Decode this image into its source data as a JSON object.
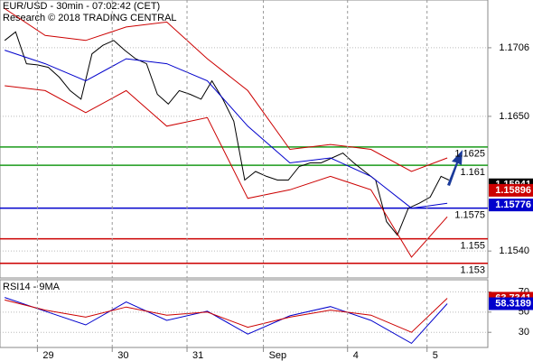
{
  "chart_data": [
    {
      "type": "line",
      "title": "EUR/USD - 30min - 07:02:42 (CET)",
      "subtitle": "Research © 2018 TRADING CENTRAL",
      "ylim": [
        1.1518,
        1.1745
      ],
      "xlim": [
        0,
        313
      ],
      "yticks": [
        1.1706,
        {
          "value": 1.165,
          "label": "1.1650"
        },
        {
          "value": 1.154,
          "label": "1.1540"
        }
      ],
      "grid": true,
      "series": [
        {
          "color": "#000000",
          "x": [
            3,
            10,
            17,
            24,
            31,
            38,
            45,
            52,
            59,
            66,
            73,
            80,
            87,
            94,
            101,
            108,
            115,
            122,
            129,
            136,
            143,
            150,
            157,
            164,
            171,
            178,
            185,
            192,
            199,
            206,
            213,
            220,
            227,
            234,
            241,
            248,
            255,
            262,
            269,
            276,
            283,
            288
          ],
          "values": [
            1.1712,
            1.1719,
            1.1693,
            1.1692,
            1.169,
            1.1682,
            1.1671,
            1.1664,
            1.1701,
            1.1708,
            1.1712,
            1.1704,
            1.1697,
            1.1693,
            1.1668,
            1.166,
            1.1671,
            1.1668,
            1.1664,
            1.1679,
            1.1664,
            1.1646,
            1.1598,
            1.1605,
            1.1601,
            1.1598,
            1.1598,
            1.1609,
            1.1612,
            1.1612,
            1.1616,
            1.162,
            1.1612,
            1.1605,
            1.1598,
            1.1564,
            1.1553,
            1.1575,
            1.1579,
            1.1584,
            1.1601,
            1.1598
          ]
        },
        {
          "color": "#cc0000",
          "x": [
            3,
            29,
            55,
            81,
            107,
            133,
            159,
            186,
            212,
            238,
            264,
            287
          ],
          "values": [
            1.1738,
            1.1716,
            1.1712,
            1.1723,
            1.1727,
            1.1697,
            1.1671,
            1.1623,
            1.1627,
            1.1623,
            1.1605,
            1.1616
          ]
        },
        {
          "color": "#cc0000",
          "x": [
            3,
            29,
            55,
            81,
            107,
            133,
            159,
            186,
            212,
            238,
            264,
            287
          ],
          "values": [
            1.1675,
            1.1671,
            1.1653,
            1.1671,
            1.1642,
            1.1649,
            1.1583,
            1.159,
            1.1601,
            1.159,
            1.1535,
            1.1568
          ]
        },
        {
          "color": "#0000cc",
          "x": [
            3,
            29,
            55,
            81,
            107,
            133,
            159,
            186,
            212,
            238,
            264,
            287
          ],
          "values": [
            1.1704,
            1.1693,
            1.1679,
            1.1697,
            1.1693,
            1.1679,
            1.1642,
            1.1612,
            1.1616,
            1.1601,
            1.1575,
            1.1579
          ]
        }
      ],
      "levels": [
        {
          "value": 1.1625,
          "color": "#1a9a1a"
        },
        {
          "value": 1.161,
          "color": "#1a9a1a"
        },
        {
          "value": 1.1575,
          "color": "#0000cc"
        },
        {
          "value": 1.155,
          "color": "#cc0000"
        },
        {
          "value": 1.153,
          "color": "#cc0000"
        }
      ],
      "price_tags": [
        {
          "value": 1.15941,
          "color": "#000000"
        },
        {
          "value": 1.15896,
          "color": "#cc0000"
        },
        {
          "value": 1.15776,
          "color": "#0000cc"
        }
      ]
    },
    {
      "type": "line",
      "title": "RSI14 - 9MA",
      "ylim": [
        15,
        82
      ],
      "xlim": [
        0,
        313
      ],
      "yticks": [
        70,
        50,
        30
      ],
      "xticks": [
        {
          "value": 24,
          "label": "29"
        },
        {
          "value": 72,
          "label": "30"
        },
        {
          "value": 120,
          "label": "31"
        },
        {
          "value": 169,
          "label": "Sep"
        },
        {
          "value": 223,
          "label": "4"
        },
        {
          "value": 274,
          "label": "5"
        }
      ],
      "series": [
        {
          "color": "#0000cc",
          "x": [
            3,
            29,
            55,
            81,
            107,
            133,
            159,
            186,
            212,
            238,
            264,
            287
          ],
          "values": [
            64.5,
            50.9,
            37.3,
            60,
            41.8,
            50.9,
            28.2,
            46.4,
            55.5,
            41.8,
            19.1,
            58.3
          ]
        },
        {
          "color": "#cc0000",
          "x": [
            3,
            29,
            55,
            81,
            107,
            133,
            159,
            186,
            212,
            238,
            264,
            287
          ],
          "values": [
            62,
            52,
            45,
            55,
            47,
            50,
            35,
            45,
            52,
            47,
            30,
            63.7
          ]
        }
      ],
      "price_tags": [
        {
          "value": 63.7341,
          "color": "#cc0000"
        },
        {
          "value": 58.3189,
          "color": "#0000cc"
        }
      ]
    }
  ]
}
